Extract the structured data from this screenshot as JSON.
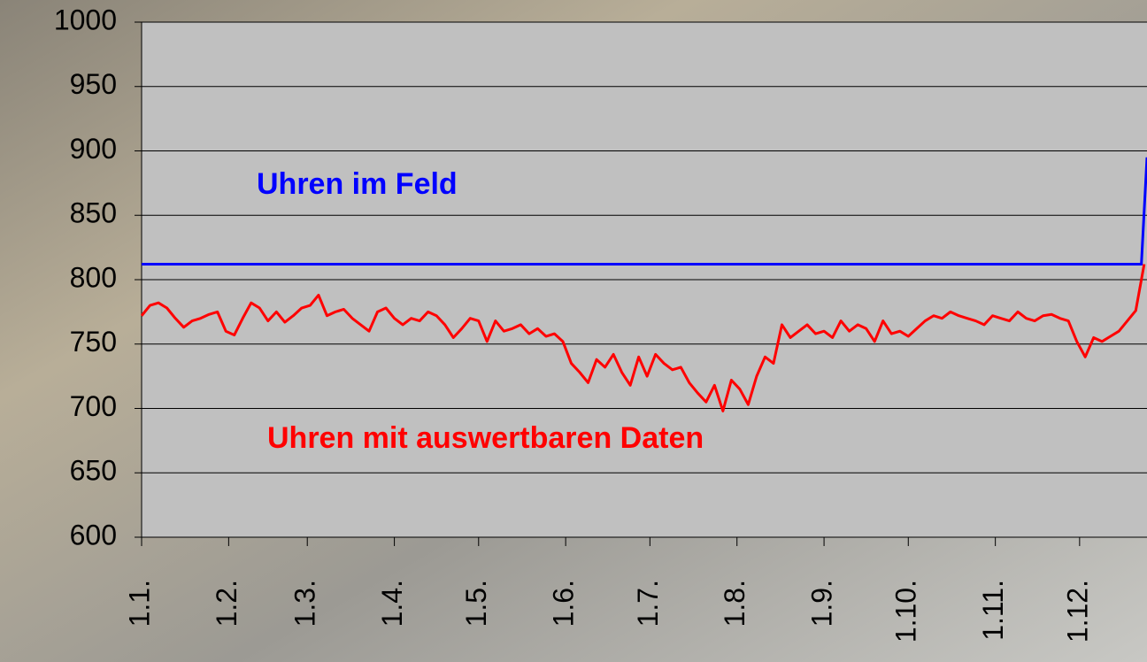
{
  "chart_data": {
    "type": "line",
    "xlim": [
      0,
      358
    ],
    "xticks": [
      {
        "value": 0,
        "label": "1.1."
      },
      {
        "value": 31,
        "label": "1.2."
      },
      {
        "value": 59,
        "label": "1.3."
      },
      {
        "value": 90,
        "label": "1.4."
      },
      {
        "value": 120,
        "label": "1.5."
      },
      {
        "value": 151,
        "label": "1.6."
      },
      {
        "value": 181,
        "label": "1.7."
      },
      {
        "value": 212,
        "label": "1.8."
      },
      {
        "value": 243,
        "label": "1.9."
      },
      {
        "value": 273,
        "label": "1.10."
      },
      {
        "value": 304,
        "label": "1.11."
      },
      {
        "value": 334,
        "label": "1.12."
      }
    ],
    "ylim": [
      600,
      1000
    ],
    "yticks": [
      600,
      650,
      700,
      750,
      800,
      850,
      900,
      950,
      1000
    ],
    "grid": true,
    "annotations": [
      "Uhren im Feld",
      "Uhren mit auswertbaren Daten"
    ],
    "series": [
      {
        "color": "#0000ff",
        "x": [
          0,
          356,
          358
        ],
        "values": [
          812,
          812,
          895
        ]
      },
      {
        "color": "#ff0000",
        "x": [
          0,
          3,
          6,
          9,
          12,
          15,
          18,
          21,
          24,
          27,
          30,
          33,
          36,
          39,
          42,
          45,
          48,
          51,
          54,
          57,
          60,
          63,
          66,
          69,
          72,
          75,
          78,
          81,
          84,
          87,
          90,
          93,
          96,
          99,
          102,
          105,
          108,
          111,
          114,
          117,
          120,
          123,
          126,
          129,
          132,
          135,
          138,
          141,
          144,
          147,
          150,
          153,
          156,
          159,
          162,
          165,
          168,
          171,
          174,
          177,
          180,
          183,
          186,
          189,
          192,
          195,
          198,
          201,
          204,
          207,
          210,
          213,
          216,
          219,
          222,
          225,
          228,
          231,
          234,
          237,
          240,
          243,
          246,
          249,
          252,
          255,
          258,
          261,
          264,
          267,
          270,
          273,
          276,
          279,
          282,
          285,
          288,
          291,
          294,
          297,
          300,
          303,
          306,
          309,
          312,
          315,
          318,
          321,
          324,
          327,
          330,
          333,
          336,
          339,
          342,
          345,
          348,
          351,
          354,
          357
        ],
        "values": [
          772,
          780,
          782,
          778,
          770,
          763,
          768,
          770,
          773,
          775,
          760,
          757,
          770,
          782,
          778,
          768,
          775,
          767,
          772,
          778,
          780,
          788,
          772,
          775,
          777,
          770,
          765,
          760,
          775,
          778,
          770,
          765,
          770,
          768,
          775,
          772,
          765,
          755,
          762,
          770,
          768,
          752,
          768,
          760,
          762,
          765,
          758,
          762,
          756,
          758,
          752,
          735,
          728,
          720,
          738,
          732,
          742,
          728,
          718,
          740,
          725,
          742,
          735,
          730,
          732,
          720,
          712,
          705,
          718,
          698,
          722,
          715,
          703,
          725,
          740,
          735,
          765,
          755,
          760,
          765,
          758,
          760,
          755,
          768,
          760,
          765,
          762,
          752,
          768,
          758,
          760,
          756,
          762,
          768,
          772,
          770,
          775,
          772,
          770,
          768,
          765,
          772,
          770,
          768,
          775,
          770,
          768,
          772,
          773,
          770,
          768,
          752,
          740,
          755,
          752,
          756,
          760,
          768,
          776,
          812
        ]
      }
    ]
  }
}
